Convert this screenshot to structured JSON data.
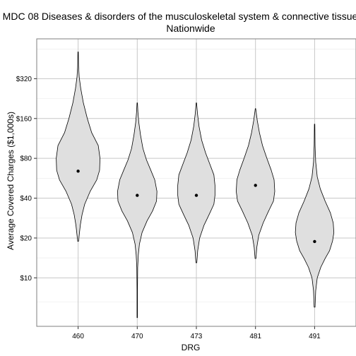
{
  "chart_data": {
    "type": "violin",
    "title": "MDC 08 Diseases & disorders of the musculoskeletal system & connective tissue",
    "subtitle": "Nationwide",
    "xlabel": "DRG",
    "ylabel": "Average Covered Charges ($1,000s)",
    "y_scale": "log",
    "yticks": [
      {
        "value": 10,
        "label": "$10"
      },
      {
        "value": 20,
        "label": "$20"
      },
      {
        "value": 40,
        "label": "$40"
      },
      {
        "value": 80,
        "label": "$80"
      },
      {
        "value": 160,
        "label": "$160"
      },
      {
        "value": 320,
        "label": "$320"
      }
    ],
    "ylim": [
      4.3,
      640
    ],
    "grid": true,
    "categories": [
      "460",
      "470",
      "473",
      "481",
      "491"
    ],
    "violins": [
      {
        "category": "460",
        "median": 64,
        "min": 18.9,
        "max": 510,
        "profile": [
          [
            18.9,
            0.02
          ],
          [
            21,
            0.05
          ],
          [
            25,
            0.1
          ],
          [
            30,
            0.18
          ],
          [
            36,
            0.3
          ],
          [
            45,
            0.55
          ],
          [
            55,
            0.85
          ],
          [
            65,
            0.98
          ],
          [
            80,
            1.0
          ],
          [
            100,
            0.92
          ],
          [
            125,
            0.62
          ],
          [
            160,
            0.42
          ],
          [
            210,
            0.24
          ],
          [
            270,
            0.12
          ],
          [
            330,
            0.05
          ],
          [
            400,
            0.02
          ],
          [
            510,
            0.01
          ]
        ]
      },
      {
        "category": "470",
        "median": 42,
        "min": 5.0,
        "max": 210,
        "profile": [
          [
            5.0,
            0.01
          ],
          [
            8,
            0.01
          ],
          [
            12,
            0.02
          ],
          [
            15,
            0.05
          ],
          [
            18,
            0.1
          ],
          [
            22,
            0.22
          ],
          [
            27,
            0.45
          ],
          [
            32,
            0.7
          ],
          [
            38,
            0.88
          ],
          [
            45,
            0.9
          ],
          [
            55,
            0.8
          ],
          [
            65,
            0.62
          ],
          [
            78,
            0.42
          ],
          [
            95,
            0.26
          ],
          [
            120,
            0.15
          ],
          [
            150,
            0.07
          ],
          [
            180,
            0.03
          ],
          [
            210,
            0.01
          ]
        ]
      },
      {
        "category": "473",
        "median": 42,
        "min": 13,
        "max": 210,
        "profile": [
          [
            13,
            0.02
          ],
          [
            16,
            0.06
          ],
          [
            20,
            0.15
          ],
          [
            25,
            0.35
          ],
          [
            30,
            0.58
          ],
          [
            36,
            0.8
          ],
          [
            42,
            0.85
          ],
          [
            50,
            0.85
          ],
          [
            60,
            0.8
          ],
          [
            72,
            0.62
          ],
          [
            88,
            0.42
          ],
          [
            110,
            0.24
          ],
          [
            140,
            0.12
          ],
          [
            175,
            0.05
          ],
          [
            210,
            0.01
          ]
        ]
      },
      {
        "category": "481",
        "median": 50,
        "min": 14,
        "max": 190,
        "profile": [
          [
            14,
            0.02
          ],
          [
            17,
            0.06
          ],
          [
            21,
            0.15
          ],
          [
            26,
            0.35
          ],
          [
            32,
            0.6
          ],
          [
            38,
            0.82
          ],
          [
            45,
            0.88
          ],
          [
            55,
            0.85
          ],
          [
            65,
            0.72
          ],
          [
            80,
            0.52
          ],
          [
            100,
            0.32
          ],
          [
            125,
            0.18
          ],
          [
            155,
            0.08
          ],
          [
            190,
            0.01
          ]
        ]
      },
      {
        "category": "491",
        "median": 18.8,
        "min": 6.0,
        "max": 145,
        "profile": [
          [
            6.0,
            0.02
          ],
          [
            8,
            0.05
          ],
          [
            10,
            0.12
          ],
          [
            12,
            0.28
          ],
          [
            14,
            0.48
          ],
          [
            16,
            0.68
          ],
          [
            19,
            0.82
          ],
          [
            22,
            0.88
          ],
          [
            26,
            0.85
          ],
          [
            31,
            0.72
          ],
          [
            38,
            0.48
          ],
          [
            47,
            0.26
          ],
          [
            58,
            0.12
          ],
          [
            75,
            0.05
          ],
          [
            100,
            0.02
          ],
          [
            145,
            0.01
          ]
        ]
      }
    ],
    "colors": {
      "violin_fill": "#dfdfdf",
      "violin_stroke": "#000000",
      "median_point": "#000000",
      "grid_major": "#c7c7c7",
      "grid_minor": "#ededed",
      "panel_border": "#7f7f7f",
      "background": "#ffffff"
    }
  }
}
